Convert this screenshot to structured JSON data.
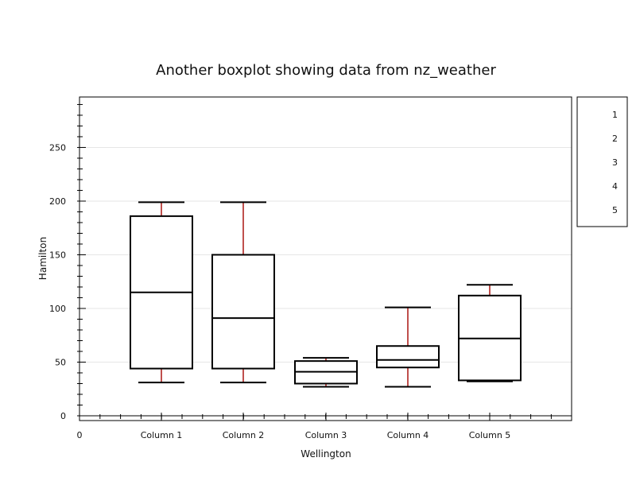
{
  "chart_data": {
    "type": "boxplot",
    "title": "Another  boxplot showing data from nz_weather",
    "xlabel": "Wellington",
    "ylabel": "Hamilton",
    "x_start_label": "0",
    "ylim": [
      0,
      297
    ],
    "yticks": [
      0,
      50,
      100,
      150,
      200,
      250
    ],
    "grid": true,
    "legend_position": "right",
    "legend_entries": [
      "1",
      "2",
      "3",
      "4",
      "5"
    ],
    "series": [
      {
        "label": "Column 1",
        "whisker_low": 31,
        "q1": 44,
        "median": 115,
        "q3": 186,
        "whisker_high": 199
      },
      {
        "label": "Column 2",
        "whisker_low": 31,
        "q1": 44,
        "median": 91,
        "q3": 150,
        "whisker_high": 199
      },
      {
        "label": "Column 3",
        "whisker_low": 27,
        "q1": 30,
        "median": 41,
        "q3": 51,
        "whisker_high": 54
      },
      {
        "label": "Column 4",
        "whisker_low": 27,
        "q1": 45,
        "median": 52,
        "q3": 65,
        "whisker_high": 101
      },
      {
        "label": "Column 5",
        "whisker_low": 32,
        "q1": 33,
        "median": 72,
        "q3": 112,
        "whisker_high": 122
      }
    ],
    "colors": {
      "box": "#000000",
      "whisker": "#c0504d",
      "grid": "#e6e6e6"
    }
  }
}
